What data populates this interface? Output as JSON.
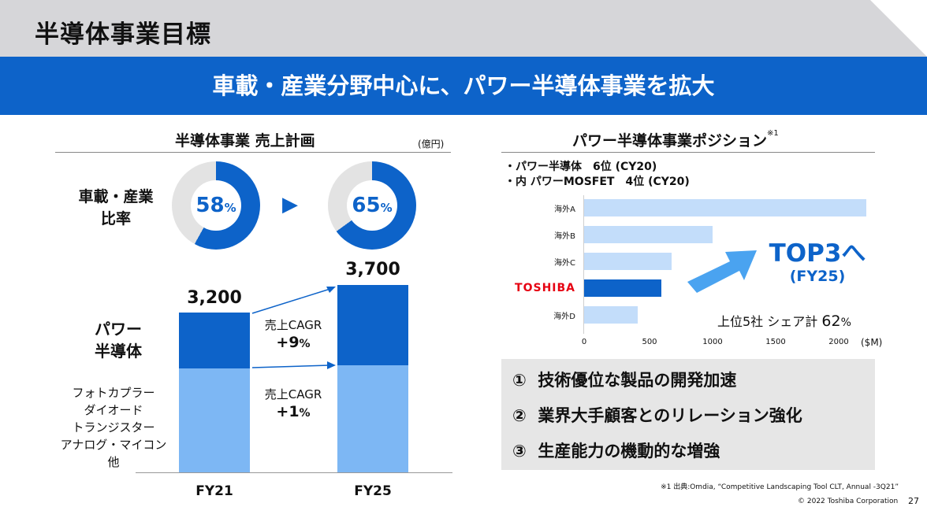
{
  "header": {
    "title": "半導体事業目標"
  },
  "banner": {
    "text": "車載・産業分野中心に、パワー半導体事業を拡大"
  },
  "left": {
    "title": "半導体事業 売上計画",
    "unit": "(億円)",
    "ratio_label_line1": "車載・産業",
    "ratio_label_line2": "比率",
    "donuts": [
      {
        "value": "58",
        "percent_sign": "%",
        "fraction": 0.58
      },
      {
        "value": "65",
        "percent_sign": "%",
        "fraction": 0.65
      }
    ],
    "arrow_glyph": "▶",
    "power_label_line1": "パワー",
    "power_label_line2": "半導体",
    "other_label_lines": [
      "フォトカプラー",
      "ダイオード",
      "トランジスター",
      "アナログ・マイコン",
      "他"
    ],
    "bars": [
      {
        "year": "FY21",
        "total": "3,200"
      },
      {
        "year": "FY25",
        "total": "3,700"
      }
    ],
    "cagr": [
      {
        "label": "売上CAGR",
        "value": "+9",
        "percent_sign": "%"
      },
      {
        "label": "売上CAGR",
        "value": "+1",
        "percent_sign": "%"
      }
    ]
  },
  "right": {
    "title": "パワー半導体事業ポジション",
    "title_note": "※1",
    "bullets": [
      "・パワー半導体　6位 (CY20)",
      "・内 パワーMOSFET　4位 (CY20)"
    ],
    "chart_data": {
      "type": "bar",
      "orientation": "horizontal",
      "categories": [
        "海外A",
        "海外B",
        "海外C",
        "TOSHIBA",
        "海外D"
      ],
      "values": [
        2200,
        1000,
        680,
        600,
        420
      ],
      "highlight": "TOSHIBA",
      "xlim": [
        0,
        2200
      ],
      "xticks": [
        "0",
        "500",
        "1000",
        "1500",
        "2000"
      ],
      "xunit": "($M)",
      "colors": {
        "bar": "#c3ddfa",
        "highlight": "#0d63c9"
      }
    },
    "target_text": "TOP3へ",
    "target_sub": "(FY25)",
    "share_label": "上位5社 シェア計",
    "share_value": "62",
    "share_percent": "%"
  },
  "initiatives": [
    {
      "num": "①",
      "text": "技術優位な製品の開発加速"
    },
    {
      "num": "②",
      "text": "業界大手顧客とのリレーション強化"
    },
    {
      "num": "③",
      "text": "生産能力の機動的な増強"
    }
  ],
  "footer": {
    "source_note": "※1 出典:Omdia, “Competitive Landscaping Tool CLT, Annual -3Q21”",
    "copyright": "© 2022 Toshiba Corporation",
    "page_number": "27"
  },
  "colors": {
    "accent": "#0d63c9",
    "light": "#7db7f4",
    "pale": "#c3ddfa",
    "header_gray": "#d6d6d9",
    "red_logo": "#e60012"
  }
}
